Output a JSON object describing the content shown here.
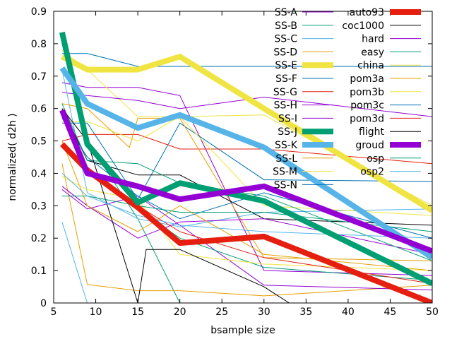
{
  "chart_data": {
    "type": "line",
    "title": "",
    "xlabel": "bsample size",
    "ylabel": "normalized( d2h )",
    "xlim": [
      5,
      50
    ],
    "ylim": [
      0,
      0.9
    ],
    "xticks": [
      5,
      10,
      15,
      20,
      25,
      30,
      35,
      40,
      45,
      50
    ],
    "yticks": [
      0,
      0.1,
      0.2,
      0.3,
      0.4,
      0.5,
      0.6,
      0.7,
      0.8,
      0.9
    ],
    "xtick_labels": [
      "5",
      "10",
      "15",
      "20",
      "25",
      "30",
      "35",
      "40",
      "45",
      "50"
    ],
    "ytick_labels": [
      "0",
      "0.1",
      "0.2",
      "0.3",
      "0.4",
      "0.5",
      "0.6",
      "0.7",
      "0.8",
      "0.9"
    ],
    "legend_position": "top-right",
    "grid": false,
    "series": [
      {
        "name": "SS-A",
        "color": "#9400d3",
        "width": 1,
        "x": [
          6,
          9,
          15,
          20,
          30,
          50
        ],
        "y": [
          0.68,
          0.665,
          0.665,
          0.64,
          0.1,
          0.085
        ]
      },
      {
        "name": "SS-B",
        "color": "#009e73",
        "width": 1,
        "x": [
          6,
          9,
          15,
          20
        ],
        "y": [
          0.83,
          0.5,
          0.26,
          0.0
        ]
      },
      {
        "name": "SS-C",
        "color": "#56b4e9",
        "width": 1,
        "x": [
          6,
          9
        ],
        "y": [
          0.25,
          0.0
        ]
      },
      {
        "name": "SS-D",
        "color": "#e69f00",
        "width": 1,
        "x": [
          6,
          9,
          15,
          20,
          30,
          50
        ],
        "y": [
          0.43,
          0.057,
          0.038,
          0.038,
          0.022,
          0.055
        ]
      },
      {
        "name": "SS-E",
        "color": "#f0e442",
        "width": 1,
        "x": [
          6,
          9,
          15,
          20,
          30,
          50
        ],
        "y": [
          0.78,
          0.72,
          0.575,
          0.575,
          0.58,
          0.3
        ]
      },
      {
        "name": "SS-F",
        "color": "#0072b2",
        "width": 1,
        "x": [
          6,
          9,
          15,
          20,
          30,
          50
        ],
        "y": [
          0.555,
          0.555,
          0.32,
          0.555,
          0.38,
          0.375
        ]
      },
      {
        "name": "SS-G",
        "color": "#e51e10",
        "width": 1,
        "x": [
          6,
          9,
          15,
          20,
          30,
          50
        ],
        "y": [
          0.5,
          0.52,
          0.52,
          0.475,
          0.475,
          0.43
        ]
      },
      {
        "name": "SS-H",
        "color": "#9400d3",
        "width": 1,
        "x": [
          6,
          9,
          15,
          20,
          30,
          50
        ],
        "y": [
          0.35,
          0.29,
          0.33,
          0.24,
          0.055,
          0.04
        ]
      },
      {
        "name": "SS-I",
        "color": "#9400d3",
        "width": 1,
        "x": [
          6,
          9,
          15,
          20,
          30,
          50
        ],
        "y": [
          0.65,
          0.64,
          0.625,
          0.6,
          0.635,
          0.575
        ]
      },
      {
        "name": "SS-J",
        "color": "#009e73",
        "width": 1,
        "x": [
          6,
          9,
          15,
          20,
          30,
          50
        ],
        "y": [
          0.49,
          0.41,
          0.29,
          0.2,
          0.11,
          0.07
        ]
      },
      {
        "name": "SS-K",
        "color": "#56b4e9",
        "width": 1,
        "x": [
          6,
          9,
          15,
          20,
          30,
          50
        ],
        "y": [
          0.72,
          0.34,
          0.26,
          0.235,
          0.28,
          0.29
        ]
      },
      {
        "name": "SS-L",
        "color": "#e69f00",
        "width": 1,
        "x": [
          6,
          9,
          14,
          15,
          20,
          30,
          50
        ],
        "y": [
          0.615,
          0.6,
          0.48,
          0.57,
          0.57,
          0.14,
          0.13
        ]
      },
      {
        "name": "SS-M",
        "color": "#f0e442",
        "width": 1,
        "x": [
          6,
          9,
          15,
          20,
          30,
          50
        ],
        "y": [
          0.56,
          0.56,
          0.5,
          0.575,
          0.3,
          0.27
        ]
      },
      {
        "name": "SS-N",
        "color": "#0072b2",
        "width": 1,
        "x": [
          6,
          9,
          15,
          20,
          30,
          50
        ],
        "y": [
          0.77,
          0.77,
          0.73,
          0.73,
          0.73,
          0.73
        ]
      },
      {
        "name": "auto93",
        "color": "#e51e10",
        "width": 8,
        "x": [
          6,
          9,
          15,
          20,
          30,
          50
        ],
        "y": [
          0.49,
          0.41,
          0.295,
          0.185,
          0.205,
          0.0
        ]
      },
      {
        "name": "coc1000",
        "color": "#000000",
        "width": 1,
        "x": [
          6,
          9,
          15,
          20,
          30,
          50
        ],
        "y": [
          0.6,
          0.44,
          0.395,
          0.395,
          0.26,
          0.24
        ]
      },
      {
        "name": "hard",
        "color": "#9400d3",
        "width": 1,
        "x": [
          6,
          9,
          15,
          20,
          30,
          50
        ],
        "y": [
          0.36,
          0.3,
          0.2,
          0.25,
          0.26,
          0.15
        ]
      },
      {
        "name": "easy",
        "color": "#009e73",
        "width": 1,
        "x": [
          6,
          9,
          15,
          20,
          30,
          50
        ],
        "y": [
          0.615,
          0.44,
          0.43,
          0.37,
          0.33,
          0.13
        ]
      },
      {
        "name": "china",
        "color": "#f0e442",
        "width": 8,
        "x": [
          6,
          9,
          15,
          20,
          30,
          50
        ],
        "y": [
          0.76,
          0.72,
          0.72,
          0.76,
          0.6,
          0.285
        ]
      },
      {
        "name": "pom3a",
        "color": "#e69f00",
        "width": 1,
        "x": [
          6,
          9,
          15,
          20,
          30,
          50
        ],
        "y": [
          0.5,
          0.3,
          0.22,
          0.3,
          0.15,
          0.1
        ]
      },
      {
        "name": "pom3b",
        "color": "#f0e442",
        "width": 1,
        "x": [
          6,
          9,
          15,
          20,
          30,
          50
        ],
        "y": [
          0.39,
          0.35,
          0.32,
          0.15,
          0.12,
          0.1
        ]
      },
      {
        "name": "pom3c",
        "color": "#0072b2",
        "width": 1,
        "x": [
          6,
          9,
          15,
          20,
          30,
          50
        ],
        "y": [
          0.57,
          0.45,
          0.33,
          0.26,
          0.34,
          0.2
        ]
      },
      {
        "name": "pom3d",
        "color": "#e51e10",
        "width": 1,
        "x": [
          6,
          9,
          15,
          20,
          30,
          50
        ],
        "y": [
          0.49,
          0.4,
          0.3,
          0.22,
          0.14,
          0.06
        ]
      },
      {
        "name": "flight",
        "color": "#000000",
        "width": 1,
        "x": [
          6,
          9,
          15,
          16,
          20,
          30,
          33
        ],
        "y": [
          0.6,
          0.5,
          0.0,
          0.165,
          0.165,
          0.05,
          0.0
        ]
      },
      {
        "name": "groud",
        "color": "#009e73",
        "width": 8,
        "x": [
          6,
          9,
          15,
          20,
          30,
          50
        ],
        "y": [
          0.835,
          0.49,
          0.31,
          0.37,
          0.315,
          0.06
        ]
      },
      {
        "name": "flight",
        "color": "#56b4e9",
        "width": 8,
        "x": [
          6,
          9,
          15,
          20,
          30,
          50
        ],
        "y": [
          0.725,
          0.615,
          0.54,
          0.58,
          0.48,
          0.14
        ]
      },
      {
        "name": "groud",
        "color": "#9400d3",
        "width": 8,
        "x": [
          6,
          9,
          15,
          20,
          30,
          50
        ],
        "y": [
          0.595,
          0.4,
          0.36,
          0.32,
          0.36,
          0.16
        ]
      },
      {
        "name": "osp",
        "color": "#009e73",
        "width": 1,
        "x": [
          6,
          9,
          15,
          20,
          30,
          50
        ],
        "y": [
          0.33,
          0.33,
          0.3,
          0.28,
          0.28,
          0.22
        ]
      },
      {
        "name": "osp2",
        "color": "#56b4e9",
        "width": 1,
        "x": [
          6,
          9,
          15,
          20,
          30,
          50
        ],
        "y": [
          0.4,
          0.33,
          0.27,
          0.24,
          0.22,
          0.2
        ]
      }
    ],
    "legend": {
      "columns": [
        [
          {
            "name": "SS-A",
            "color": "#9400d3",
            "width": 1
          },
          {
            "name": "SS-B",
            "color": "#009e73",
            "width": 1
          },
          {
            "name": "SS-C",
            "color": "#56b4e9",
            "width": 1
          },
          {
            "name": "SS-D",
            "color": "#e69f00",
            "width": 1
          },
          {
            "name": "SS-E",
            "color": "#f0e442",
            "width": 8
          },
          {
            "name": "SS-F",
            "color": "#0072b2",
            "width": 1
          },
          {
            "name": "SS-G",
            "color": "#e51e10",
            "width": 1
          },
          {
            "name": "SS-H",
            "color": "#9400d3",
            "width": 1
          },
          {
            "name": "SS-I",
            "color": "#9400d3",
            "width": 1
          },
          {
            "name": "SS-J",
            "color": "#009e73",
            "width": 8
          },
          {
            "name": "SS-K",
            "color": "#56b4e9",
            "width": 8
          },
          {
            "name": "SS-L",
            "color": "#e69f00",
            "width": 1
          },
          {
            "name": "SS-M",
            "color": "#f0e442",
            "width": 1
          },
          {
            "name": "SS-N",
            "color": "#0072b2",
            "width": 1
          }
        ],
        [
          {
            "name": "auto93",
            "color": "#e51e10",
            "width": 8
          },
          {
            "name": "coc1000",
            "color": "#000000",
            "width": 1
          },
          {
            "name": "hard",
            "color": "#9400d3",
            "width": 1
          },
          {
            "name": "easy",
            "color": "#009e73",
            "width": 1
          },
          {
            "name": "china",
            "color": "#f0e442",
            "width": 1
          },
          {
            "name": "pom3a",
            "color": "#e69f00",
            "width": 1
          },
          {
            "name": "pom3b",
            "color": "#f0e442",
            "width": 1
          },
          {
            "name": "pom3c",
            "color": "#0072b2",
            "width": 1
          },
          {
            "name": "pom3d",
            "color": "#e51e10",
            "width": 1
          },
          {
            "name": "flight",
            "color": "#000000",
            "width": 1
          },
          {
            "name": "groud",
            "color": "#9400d3",
            "width": 8
          },
          {
            "name": "osp",
            "color": "#009e73",
            "width": 1
          },
          {
            "name": "osp2",
            "color": "#56b4e9",
            "width": 1
          }
        ]
      ]
    }
  }
}
